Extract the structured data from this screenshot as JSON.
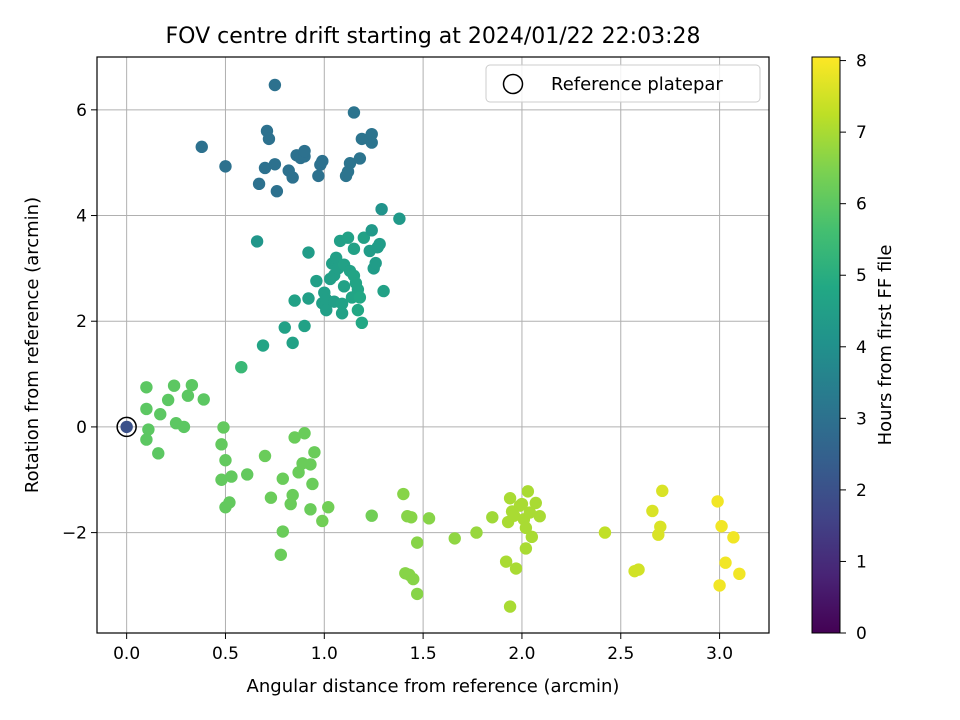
{
  "chart_data": {
    "type": "scatter",
    "title": "FOV centre drift starting at 2024/01/22 22:03:28",
    "xlabel": "Angular distance from reference (arcmin)",
    "ylabel": "Rotation from reference (arcmin)",
    "xlim": [
      -0.15,
      3.25
    ],
    "ylim": [
      -3.9,
      7.0
    ],
    "xticks": [
      "0.0",
      "0.5",
      "1.0",
      "1.5",
      "2.0",
      "2.5",
      "3.0"
    ],
    "xtick_values": [
      0.0,
      0.5,
      1.0,
      1.5,
      2.0,
      2.5,
      3.0
    ],
    "yticks": [
      "−2",
      "0",
      "2",
      "4",
      "6"
    ],
    "ytick_values": [
      -2,
      0,
      2,
      4,
      6
    ],
    "grid": true,
    "legend": {
      "placement": "top-right",
      "entries": [
        "Reference platepar"
      ]
    },
    "colorbar": {
      "label": "Hours from first FF file",
      "ticks": [
        "0",
        "1",
        "2",
        "3",
        "4",
        "5",
        "6",
        "7",
        "8"
      ],
      "tick_values": [
        0,
        1,
        2,
        3,
        4,
        5,
        6,
        7,
        8
      ],
      "range": [
        0,
        8.05
      ],
      "colormap": "viridis"
    },
    "reference_point": {
      "x": 0.0,
      "y": 0.0
    },
    "series": [
      {
        "points": [
          [
            0.0,
            0.0,
            2.0
          ],
          [
            0.38,
            5.3,
            3.0
          ],
          [
            0.5,
            4.93,
            3.0
          ],
          [
            0.67,
            4.6,
            3.0
          ],
          [
            0.7,
            4.9,
            3.0
          ],
          [
            0.71,
            5.6,
            3.0
          ],
          [
            0.72,
            5.45,
            3.0
          ],
          [
            0.75,
            4.97,
            3.0
          ],
          [
            0.75,
            6.47,
            3.0
          ],
          [
            0.76,
            4.46,
            3.0
          ],
          [
            0.82,
            4.85,
            3.0
          ],
          [
            0.84,
            4.72,
            3.0
          ],
          [
            0.86,
            5.14,
            3.0
          ],
          [
            0.88,
            5.09,
            3.0
          ],
          [
            0.9,
            5.12,
            3.0
          ],
          [
            0.9,
            5.22,
            3.0
          ],
          [
            0.97,
            4.75,
            3.0
          ],
          [
            0.98,
            4.96,
            3.0
          ],
          [
            0.99,
            5.03,
            3.0
          ],
          [
            1.11,
            4.75,
            3.1
          ],
          [
            1.12,
            4.83,
            3.1
          ],
          [
            1.13,
            4.99,
            3.1
          ],
          [
            1.15,
            5.95,
            3.1
          ],
          [
            1.18,
            5.08,
            3.1
          ],
          [
            1.19,
            5.45,
            3.1
          ],
          [
            1.23,
            5.44,
            3.1
          ],
          [
            1.24,
            5.38,
            3.1
          ],
          [
            1.24,
            5.54,
            3.1
          ],
          [
            0.66,
            3.51,
            4.2
          ],
          [
            0.69,
            1.54,
            4.7
          ],
          [
            0.8,
            1.88,
            4.6
          ],
          [
            0.84,
            1.59,
            4.6
          ],
          [
            0.85,
            2.39,
            4.6
          ],
          [
            0.9,
            1.91,
            4.6
          ],
          [
            0.92,
            3.3,
            4.4
          ],
          [
            0.92,
            2.43,
            4.5
          ],
          [
            0.96,
            2.76,
            4.5
          ],
          [
            0.99,
            2.34,
            4.5
          ],
          [
            1.0,
            2.54,
            4.5
          ],
          [
            1.01,
            2.41,
            4.5
          ],
          [
            1.01,
            2.21,
            4.5
          ],
          [
            1.03,
            2.8,
            4.5
          ],
          [
            1.04,
            3.09,
            4.5
          ],
          [
            1.05,
            2.37,
            4.5
          ],
          [
            1.05,
            2.87,
            4.5
          ],
          [
            1.06,
            3.2,
            4.5
          ],
          [
            1.07,
            3.0,
            4.5
          ],
          [
            1.08,
            3.52,
            4.5
          ],
          [
            1.09,
            2.15,
            4.6
          ],
          [
            1.09,
            2.33,
            4.6
          ],
          [
            1.1,
            2.66,
            4.6
          ],
          [
            1.1,
            3.07,
            4.6
          ],
          [
            1.12,
            3.58,
            4.6
          ],
          [
            1.13,
            2.95,
            4.6
          ],
          [
            1.14,
            2.45,
            4.7
          ],
          [
            1.15,
            3.37,
            4.6
          ],
          [
            1.15,
            2.86,
            4.7
          ],
          [
            1.16,
            2.72,
            4.7
          ],
          [
            1.17,
            2.21,
            4.8
          ],
          [
            1.17,
            2.6,
            4.7
          ],
          [
            1.18,
            2.45,
            4.8
          ],
          [
            1.19,
            1.97,
            4.8
          ],
          [
            1.2,
            3.58,
            4.6
          ],
          [
            1.23,
            3.33,
            4.4
          ],
          [
            1.24,
            3.72,
            4.3
          ],
          [
            1.25,
            3.0,
            4.4
          ],
          [
            1.26,
            3.1,
            4.4
          ],
          [
            1.27,
            3.4,
            4.4
          ],
          [
            1.28,
            3.46,
            4.4
          ],
          [
            1.29,
            4.12,
            4.1
          ],
          [
            1.3,
            2.57,
            4.6
          ],
          [
            1.38,
            3.94,
            4.3
          ],
          [
            0.58,
            1.13,
            5.4
          ],
          [
            0.1,
            0.75,
            6.0
          ],
          [
            0.1,
            0.34,
            6.0
          ],
          [
            0.1,
            -0.24,
            6.0
          ],
          [
            0.11,
            -0.05,
            6.0
          ],
          [
            0.16,
            -0.5,
            6.0
          ],
          [
            0.17,
            0.24,
            6.0
          ],
          [
            0.21,
            0.51,
            6.0
          ],
          [
            0.24,
            0.78,
            6.0
          ],
          [
            0.25,
            0.07,
            6.0
          ],
          [
            0.29,
            0.0,
            6.0
          ],
          [
            0.31,
            0.59,
            6.0
          ],
          [
            0.33,
            0.79,
            6.0
          ],
          [
            0.39,
            0.52,
            6.0
          ],
          [
            0.48,
            -0.33,
            6.1
          ],
          [
            0.48,
            -1.0,
            6.1
          ],
          [
            0.49,
            -0.01,
            6.1
          ],
          [
            0.5,
            -0.63,
            6.1
          ],
          [
            0.5,
            -1.52,
            6.1
          ],
          [
            0.52,
            -1.43,
            6.1
          ],
          [
            0.53,
            -0.94,
            6.1
          ],
          [
            0.61,
            -0.9,
            6.1
          ],
          [
            0.7,
            -0.55,
            6.2
          ],
          [
            0.73,
            -1.34,
            6.2
          ],
          [
            0.78,
            -2.42,
            6.2
          ],
          [
            0.79,
            -1.98,
            6.2
          ],
          [
            0.79,
            -0.98,
            6.2
          ],
          [
            0.83,
            -1.46,
            6.2
          ],
          [
            0.84,
            -1.29,
            6.2
          ],
          [
            0.85,
            -0.2,
            6.2
          ],
          [
            0.87,
            -0.86,
            6.2
          ],
          [
            0.89,
            -0.69,
            6.2
          ],
          [
            0.9,
            -0.12,
            6.2
          ],
          [
            0.93,
            -0.71,
            6.2
          ],
          [
            0.93,
            -1.56,
            6.2
          ],
          [
            0.94,
            -1.08,
            6.2
          ],
          [
            0.95,
            -0.48,
            6.2
          ],
          [
            0.99,
            -1.78,
            6.3
          ],
          [
            1.02,
            -1.52,
            6.3
          ],
          [
            1.24,
            -1.68,
            6.3
          ],
          [
            1.4,
            -1.27,
            6.6
          ],
          [
            1.41,
            -2.77,
            6.6
          ],
          [
            1.42,
            -1.69,
            6.6
          ],
          [
            1.43,
            -2.8,
            6.6
          ],
          [
            1.44,
            -1.71,
            6.6
          ],
          [
            1.45,
            -2.88,
            6.6
          ],
          [
            1.47,
            -3.16,
            6.6
          ],
          [
            1.47,
            -2.19,
            6.6
          ],
          [
            1.53,
            -1.73,
            6.6
          ],
          [
            1.66,
            -2.11,
            6.7
          ],
          [
            1.77,
            -2.0,
            6.8
          ],
          [
            1.85,
            -1.71,
            6.9
          ],
          [
            1.92,
            -2.55,
            7.0
          ],
          [
            1.93,
            -1.8,
            7.0
          ],
          [
            1.94,
            -1.35,
            7.0
          ],
          [
            1.94,
            -3.4,
            7.0
          ],
          [
            1.95,
            -1.6,
            7.0
          ],
          [
            1.96,
            -1.68,
            7.0
          ],
          [
            1.97,
            -2.68,
            7.0
          ],
          [
            1.99,
            -1.49,
            7.0
          ],
          [
            2.0,
            -1.46,
            7.0
          ],
          [
            2.01,
            -1.75,
            7.0
          ],
          [
            2.02,
            -1.91,
            7.0
          ],
          [
            2.02,
            -2.3,
            7.0
          ],
          [
            2.03,
            -1.22,
            7.0
          ],
          [
            2.04,
            -1.62,
            7.0
          ],
          [
            2.05,
            -2.08,
            7.0
          ],
          [
            2.07,
            -1.44,
            7.0
          ],
          [
            2.09,
            -1.69,
            7.0
          ],
          [
            2.42,
            -2.0,
            7.3
          ],
          [
            2.57,
            -2.73,
            7.5
          ],
          [
            2.59,
            -2.7,
            7.5
          ],
          [
            2.66,
            -1.59,
            7.6
          ],
          [
            2.69,
            -2.04,
            7.6
          ],
          [
            2.7,
            -1.89,
            7.6
          ],
          [
            2.71,
            -1.21,
            7.6
          ],
          [
            2.99,
            -1.41,
            7.9
          ],
          [
            3.0,
            -3.0,
            7.9
          ],
          [
            3.01,
            -1.88,
            7.9
          ],
          [
            3.03,
            -2.57,
            7.9
          ],
          [
            3.07,
            -2.09,
            7.9
          ],
          [
            3.1,
            -2.78,
            7.9
          ]
        ]
      }
    ]
  }
}
